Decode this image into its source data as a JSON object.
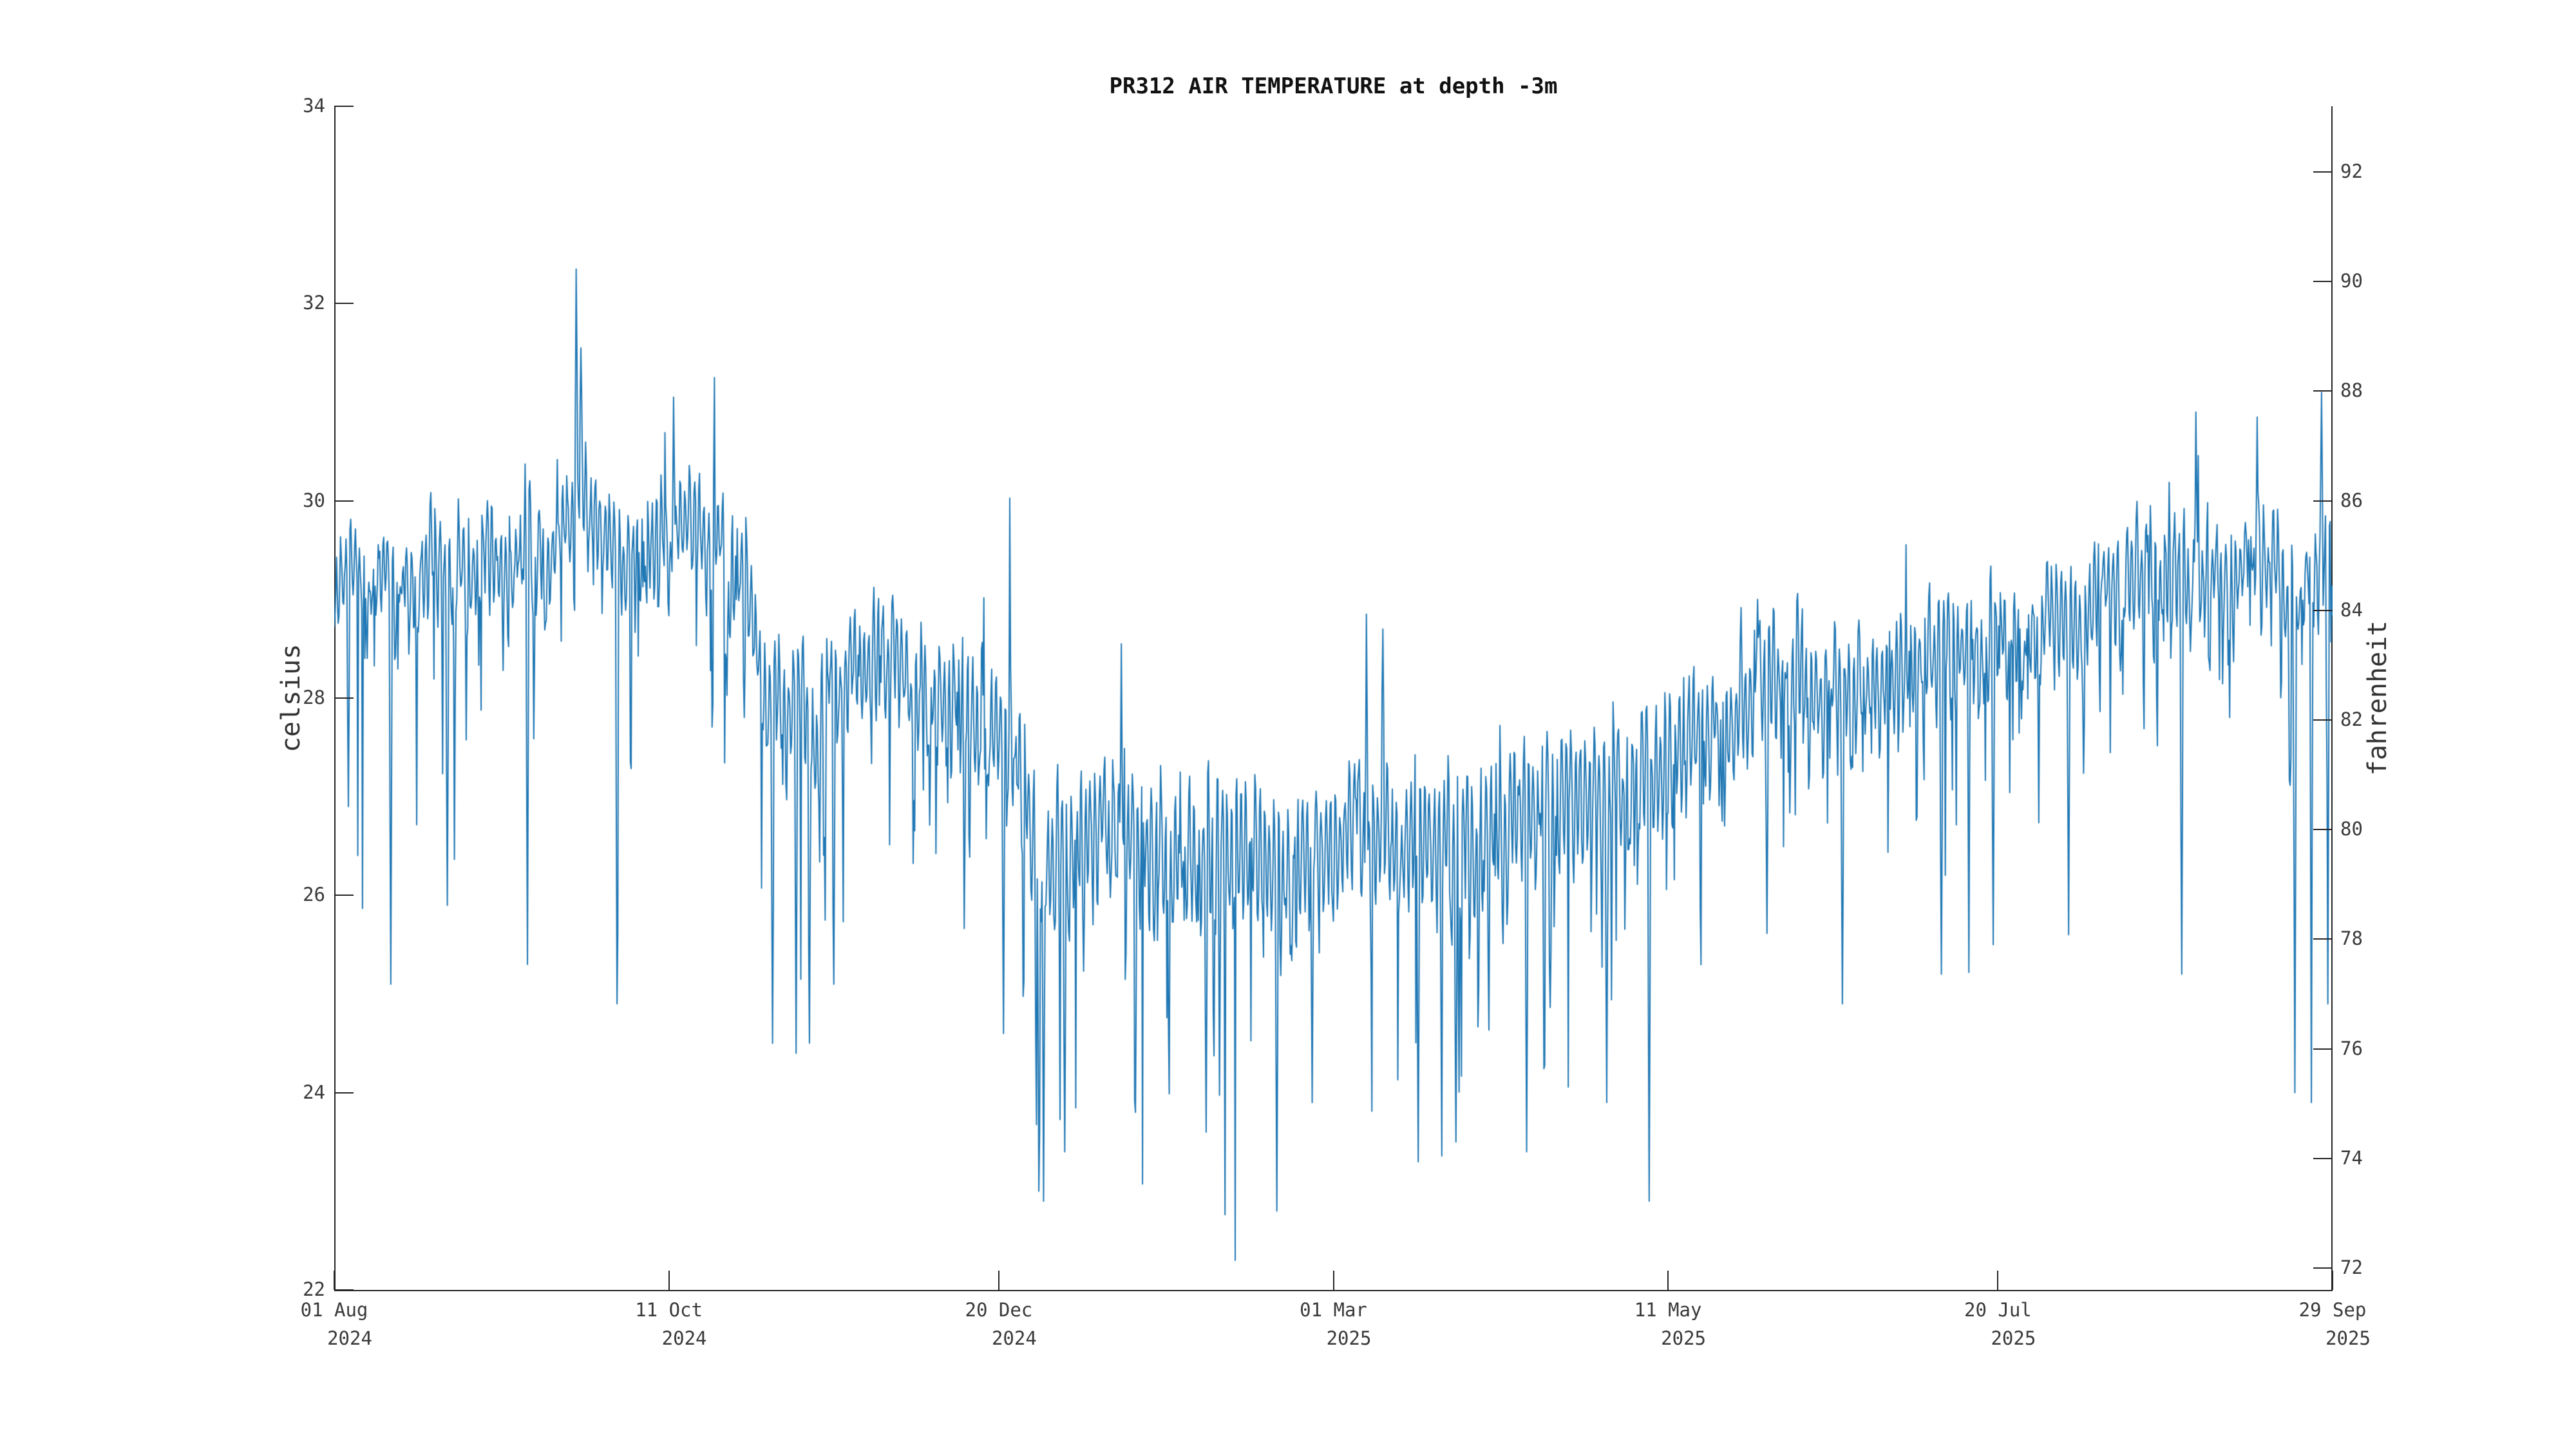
{
  "title": "PR312 AIR TEMPERATURE at depth -3m",
  "colors": {
    "background": "#ffffff",
    "line": "#1f77b4",
    "axis": "#262626",
    "tick_text": "#3a3a3a",
    "title_text": "#111111",
    "axis_label_text": "#333333"
  },
  "chart_data": {
    "type": "line",
    "title": "PR312 AIR TEMPERATURE at depth -3m",
    "series_name": "air temperature",
    "station": "PR312",
    "depth": "-3m",
    "legend": "none",
    "grid": "off",
    "x_start": "2024-08-01",
    "x_end": "2025-09-29",
    "span_days": 424,
    "y_axis_left": {
      "label": "celsius",
      "ylim": [
        22,
        34
      ],
      "ticks": [
        34,
        32,
        30,
        28,
        26,
        24,
        22
      ]
    },
    "y_axis_right": {
      "label": "fahrenheit",
      "ticks": [
        92,
        90,
        88,
        86,
        84,
        82,
        80,
        78,
        76,
        74,
        72
      ]
    },
    "x_axis": {
      "ticks": [
        {
          "label": "01 Aug",
          "year": "2024",
          "day": 0
        },
        {
          "label": "11 Oct",
          "year": "2024",
          "day": 71
        },
        {
          "label": "20 Dec",
          "year": "2024",
          "day": 141
        },
        {
          "label": "01 Mar",
          "year": "2025",
          "day": 212
        },
        {
          "label": "11 May",
          "year": "2025",
          "day": 283
        },
        {
          "label": "20 Jul",
          "year": "2025",
          "day": 353
        },
        {
          "label": "29 Sep",
          "year": "2025",
          "day": 424
        }
      ]
    },
    "extremes": {
      "max_c": 32.4,
      "max_date": "2024-09-21",
      "min_c": 22.7,
      "min_date": "2024-12-30",
      "summer_band_c": [
        28.8,
        30.0
      ],
      "winter_band_c": [
        25.9,
        27.0
      ]
    },
    "envelope_day_meanC": [
      [
        0,
        29.0
      ],
      [
        10,
        29.15
      ],
      [
        20,
        29.2
      ],
      [
        30,
        29.25
      ],
      [
        40,
        29.4
      ],
      [
        48,
        29.7
      ],
      [
        53,
        29.95
      ],
      [
        58,
        29.75
      ],
      [
        64,
        29.5
      ],
      [
        70,
        29.55
      ],
      [
        76,
        29.6
      ],
      [
        82,
        29.45
      ],
      [
        87,
        29.2
      ],
      [
        91,
        28.4
      ],
      [
        95,
        27.9
      ],
      [
        100,
        27.7
      ],
      [
        104,
        27.8
      ],
      [
        108,
        28.0
      ],
      [
        113,
        28.3
      ],
      [
        117,
        28.45
      ],
      [
        121,
        28.25
      ],
      [
        126,
        28.05
      ],
      [
        131,
        27.9
      ],
      [
        136,
        27.85
      ],
      [
        140,
        27.6
      ],
      [
        144,
        27.3
      ],
      [
        148,
        26.7
      ],
      [
        152,
        26.35
      ],
      [
        157,
        26.4
      ],
      [
        162,
        26.55
      ],
      [
        167,
        26.7
      ],
      [
        171,
        26.55
      ],
      [
        176,
        26.35
      ],
      [
        181,
        26.3
      ],
      [
        186,
        26.45
      ],
      [
        191,
        26.45
      ],
      [
        196,
        26.35
      ],
      [
        201,
        26.3
      ],
      [
        206,
        26.45
      ],
      [
        211,
        26.5
      ],
      [
        216,
        26.55
      ],
      [
        221,
        26.6
      ],
      [
        226,
        26.65
      ],
      [
        231,
        26.55
      ],
      [
        236,
        26.6
      ],
      [
        241,
        26.7
      ],
      [
        246,
        26.75
      ],
      [
        251,
        26.8
      ],
      [
        256,
        26.85
      ],
      [
        261,
        26.95
      ],
      [
        266,
        27.0
      ],
      [
        271,
        27.1
      ],
      [
        276,
        27.2
      ],
      [
        281,
        27.3
      ],
      [
        286,
        27.45
      ],
      [
        291,
        27.6
      ],
      [
        296,
        27.75
      ],
      [
        301,
        28.0
      ],
      [
        305,
        28.25
      ],
      [
        309,
        28.1
      ],
      [
        313,
        28.05
      ],
      [
        317,
        28.1
      ],
      [
        321,
        28.2
      ],
      [
        325,
        28.25
      ],
      [
        329,
        28.3
      ],
      [
        333,
        28.35
      ],
      [
        337,
        28.4
      ],
      [
        341,
        28.45
      ],
      [
        345,
        28.5
      ],
      [
        349,
        28.5
      ],
      [
        353,
        28.55
      ],
      [
        357,
        28.65
      ],
      [
        361,
        28.75
      ],
      [
        365,
        28.85
      ],
      [
        369,
        28.9
      ],
      [
        373,
        29.0
      ],
      [
        377,
        29.05
      ],
      [
        381,
        29.1
      ],
      [
        385,
        29.15
      ],
      [
        389,
        29.2
      ],
      [
        393,
        29.25
      ],
      [
        397,
        29.3
      ],
      [
        401,
        29.35
      ],
      [
        405,
        29.4
      ],
      [
        409,
        29.45
      ],
      [
        413,
        29.4
      ],
      [
        416,
        29.2
      ],
      [
        419,
        29.35
      ],
      [
        422,
        29.5
      ],
      [
        424,
        29.3
      ]
    ],
    "notable_events_day_valueC": [
      [
        3,
        26.9
      ],
      [
        12,
        25.1
      ],
      [
        24,
        25.9
      ],
      [
        41,
        25.3
      ],
      [
        51.3,
        32.35
      ],
      [
        52.3,
        31.55
      ],
      [
        60,
        24.9
      ],
      [
        72,
        31.05
      ],
      [
        93,
        24.5
      ],
      [
        98,
        24.4
      ],
      [
        106,
        25.1
      ],
      [
        142,
        24.6
      ],
      [
        149.5,
        23.0
      ],
      [
        150.5,
        22.9
      ],
      [
        155,
        23.4
      ],
      [
        167,
        28.55
      ],
      [
        170,
        23.8
      ],
      [
        185,
        23.6
      ],
      [
        200,
        22.8
      ],
      [
        207.5,
        23.9
      ],
      [
        219,
        28.85
      ],
      [
        222.5,
        28.7
      ],
      [
        230,
        23.3
      ],
      [
        238,
        23.5
      ],
      [
        253,
        23.4
      ],
      [
        270,
        23.9
      ],
      [
        279,
        22.9
      ],
      [
        302,
        29.0
      ],
      [
        320,
        24.9
      ],
      [
        341,
        25.2
      ],
      [
        352,
        25.5
      ],
      [
        368,
        25.6
      ],
      [
        392,
        25.2
      ],
      [
        395,
        30.9
      ],
      [
        408,
        30.85
      ],
      [
        416,
        24.0
      ],
      [
        419.5,
        23.9
      ],
      [
        421.6,
        31.1
      ],
      [
        423,
        24.9
      ]
    ],
    "noise": {
      "samples_per_day": 6,
      "diurnal_amp": 0.42,
      "winter_amp_boost": 0.18,
      "ar": 0.72,
      "ar_scale": 0.26,
      "dip_prob": 0.55,
      "dip_max": 3.0,
      "spike_prob": 0.1,
      "spike_max": 1.6,
      "seed": 20240801
    }
  }
}
